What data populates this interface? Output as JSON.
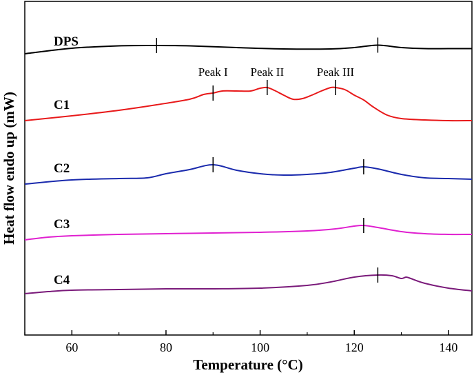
{
  "chart_data": {
    "type": "line",
    "title": "",
    "xlabel": "Temperature (°C)",
    "ylabel": "Heat flow endo up (mW)",
    "xlim": [
      50,
      145
    ],
    "xticks": [
      60,
      80,
      100,
      120,
      140
    ],
    "grid": false,
    "legend": "none",
    "peak_labels": [
      {
        "text": "Peak I",
        "x": 90
      },
      {
        "text": "Peak II",
        "x": 101.5
      },
      {
        "text": "Peak III",
        "x": 116
      }
    ],
    "series": [
      {
        "name": "DPS",
        "color": "#000000",
        "offset": 78,
        "markers": [
          78,
          125
        ],
        "points": [
          [
            50,
            0
          ],
          [
            60,
            8
          ],
          [
            70,
            11.5
          ],
          [
            78,
            12
          ],
          [
            85,
            11.5
          ],
          [
            95,
            9
          ],
          [
            105,
            7
          ],
          [
            115,
            7
          ],
          [
            120,
            9
          ],
          [
            125,
            12.5
          ],
          [
            130,
            9
          ],
          [
            135,
            7.5
          ],
          [
            140,
            7.5
          ],
          [
            145,
            7.5
          ]
        ]
      },
      {
        "name": "C1",
        "color": "#e8191a",
        "offset": 175,
        "markers": [
          90,
          101.5,
          116
        ],
        "points": [
          [
            50,
            0
          ],
          [
            60,
            7
          ],
          [
            70,
            15
          ],
          [
            78,
            23
          ],
          [
            85,
            31
          ],
          [
            88,
            38
          ],
          [
            90,
            40
          ],
          [
            92,
            43
          ],
          [
            95,
            43
          ],
          [
            98,
            43
          ],
          [
            100,
            47
          ],
          [
            101.5,
            48
          ],
          [
            103,
            44
          ],
          [
            105,
            37
          ],
          [
            107,
            31
          ],
          [
            109,
            32
          ],
          [
            111,
            37
          ],
          [
            113,
            43
          ],
          [
            115,
            48
          ],
          [
            116,
            48
          ],
          [
            118,
            45
          ],
          [
            120,
            37
          ],
          [
            122,
            30
          ],
          [
            124,
            20
          ],
          [
            127,
            8
          ],
          [
            130,
            3
          ],
          [
            135,
            1
          ],
          [
            140,
            0
          ],
          [
            145,
            0
          ]
        ]
      },
      {
        "name": "C2",
        "color": "#1a2aad",
        "offset": 267,
        "markers": [
          90,
          122
        ],
        "points": [
          [
            50,
            0
          ],
          [
            60,
            6
          ],
          [
            70,
            8
          ],
          [
            76,
            9
          ],
          [
            80,
            15
          ],
          [
            85,
            21
          ],
          [
            90,
            28
          ],
          [
            95,
            20
          ],
          [
            100,
            15
          ],
          [
            105,
            13
          ],
          [
            110,
            14
          ],
          [
            115,
            17
          ],
          [
            120,
            23
          ],
          [
            122,
            25
          ],
          [
            125,
            22
          ],
          [
            130,
            14
          ],
          [
            135,
            9
          ],
          [
            140,
            8
          ],
          [
            145,
            7
          ]
        ]
      },
      {
        "name": "C3",
        "color": "#e020d0",
        "offset": 348,
        "markers": [
          122
        ],
        "points": [
          [
            50,
            0
          ],
          [
            55,
            4
          ],
          [
            60,
            6
          ],
          [
            70,
            8
          ],
          [
            80,
            9
          ],
          [
            90,
            10
          ],
          [
            100,
            11
          ],
          [
            110,
            13
          ],
          [
            116,
            16
          ],
          [
            120,
            20
          ],
          [
            122,
            21
          ],
          [
            125,
            18
          ],
          [
            130,
            12
          ],
          [
            135,
            9
          ],
          [
            140,
            8
          ],
          [
            145,
            8
          ]
        ]
      },
      {
        "name": "C4",
        "color": "#7a1a7a",
        "offset": 426,
        "markers": [
          125
        ],
        "points": [
          [
            50,
            0
          ],
          [
            55,
            3
          ],
          [
            60,
            5
          ],
          [
            70,
            6
          ],
          [
            80,
            7
          ],
          [
            90,
            7
          ],
          [
            100,
            8
          ],
          [
            110,
            12
          ],
          [
            115,
            17
          ],
          [
            120,
            24
          ],
          [
            125,
            27
          ],
          [
            128,
            26
          ],
          [
            130,
            22
          ],
          [
            131,
            24
          ],
          [
            132,
            22
          ],
          [
            135,
            15
          ],
          [
            140,
            8
          ],
          [
            145,
            4
          ]
        ]
      }
    ]
  }
}
